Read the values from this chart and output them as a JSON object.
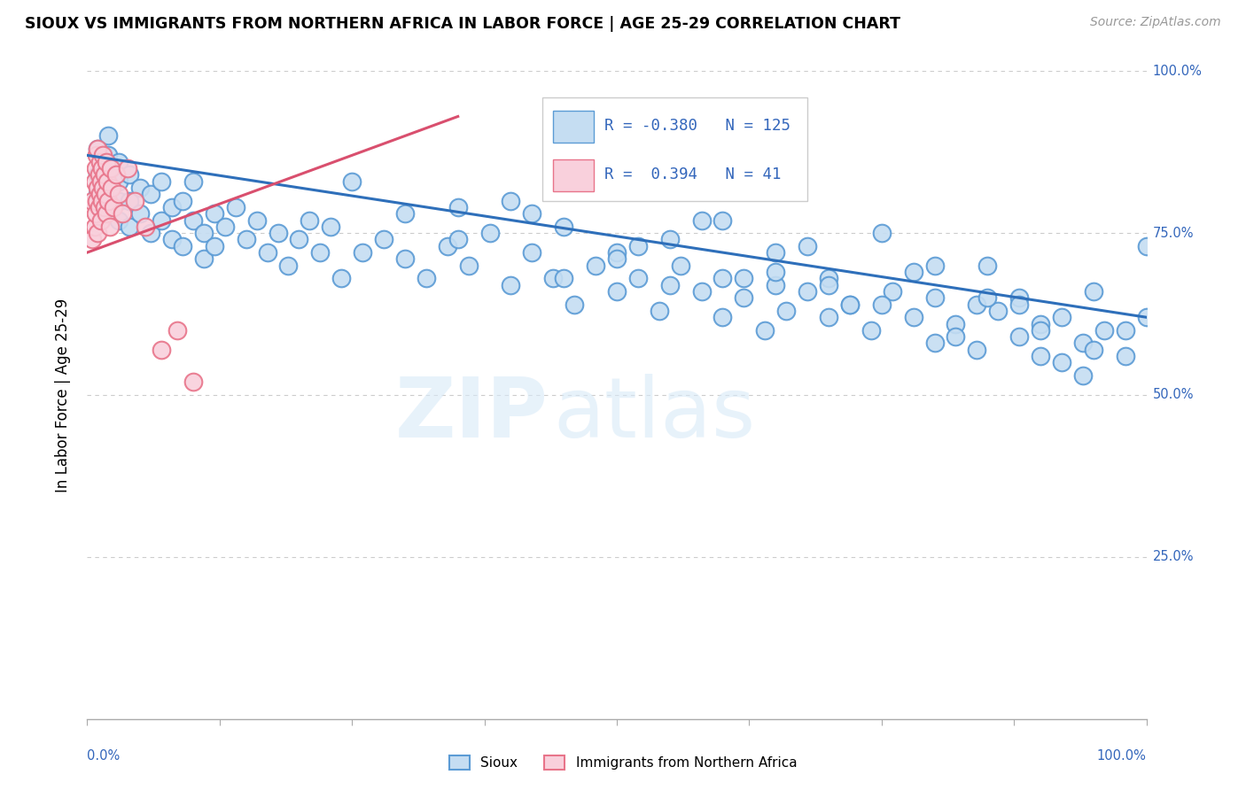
{
  "title": "SIOUX VS IMMIGRANTS FROM NORTHERN AFRICA IN LABOR FORCE | AGE 25-29 CORRELATION CHART",
  "source": "Source: ZipAtlas.com",
  "ylabel": "In Labor Force | Age 25-29",
  "sioux_R": -0.38,
  "sioux_N": 125,
  "immigrants_R": 0.394,
  "immigrants_N": 41,
  "sioux_color": "#c5ddf2",
  "sioux_edge": "#5b9bd5",
  "immigrants_color": "#f9d0dc",
  "immigrants_edge": "#e8748a",
  "sioux_line_color": "#2e6fba",
  "immigrants_line_color": "#d94f6e",
  "watermark_zip": "ZIP",
  "watermark_atlas": "atlas",
  "background": "#ffffff",
  "xlim": [
    0.0,
    1.0
  ],
  "ylim": [
    0.0,
    1.0
  ],
  "sioux_line_x0": 0.0,
  "sioux_line_x1": 1.0,
  "sioux_line_y0": 0.87,
  "sioux_line_y1": 0.62,
  "immigrants_line_x0": 0.0,
  "immigrants_line_x1": 0.35,
  "immigrants_line_y0": 0.72,
  "immigrants_line_y1": 0.93,
  "sioux_points_x": [
    0.01,
    0.01,
    0.01,
    0.02,
    0.02,
    0.02,
    0.02,
    0.02,
    0.03,
    0.03,
    0.03,
    0.03,
    0.04,
    0.04,
    0.04,
    0.05,
    0.05,
    0.06,
    0.06,
    0.07,
    0.07,
    0.08,
    0.08,
    0.09,
    0.09,
    0.1,
    0.1,
    0.11,
    0.11,
    0.12,
    0.12,
    0.13,
    0.14,
    0.15,
    0.16,
    0.17,
    0.18,
    0.19,
    0.2,
    0.21,
    0.22,
    0.23,
    0.24,
    0.26,
    0.28,
    0.3,
    0.32,
    0.34,
    0.36,
    0.38,
    0.4,
    0.42,
    0.44,
    0.46,
    0.48,
    0.5,
    0.5,
    0.52,
    0.54,
    0.56,
    0.58,
    0.6,
    0.6,
    0.62,
    0.64,
    0.65,
    0.66,
    0.68,
    0.7,
    0.7,
    0.72,
    0.74,
    0.76,
    0.78,
    0.8,
    0.8,
    0.82,
    0.84,
    0.84,
    0.86,
    0.88,
    0.88,
    0.9,
    0.9,
    0.92,
    0.94,
    0.94,
    0.96,
    0.98,
    1.0,
    0.3,
    0.35,
    0.4,
    0.45,
    0.5,
    0.55,
    0.6,
    0.65,
    0.7,
    0.75,
    0.8,
    0.85,
    0.9,
    0.95,
    1.0,
    0.25,
    0.35,
    0.45,
    0.55,
    0.65,
    0.75,
    0.85,
    0.95,
    0.48,
    0.58,
    0.68,
    0.78,
    0.88,
    0.98,
    0.42,
    0.52,
    0.62,
    0.72,
    0.82,
    0.92
  ],
  "sioux_points_y": [
    0.84,
    0.88,
    0.81,
    0.87,
    0.83,
    0.79,
    0.85,
    0.9,
    0.83,
    0.86,
    0.8,
    0.77,
    0.84,
    0.8,
    0.76,
    0.82,
    0.78,
    0.81,
    0.75,
    0.83,
    0.77,
    0.79,
    0.74,
    0.8,
    0.73,
    0.77,
    0.83,
    0.75,
    0.71,
    0.78,
    0.73,
    0.76,
    0.79,
    0.74,
    0.77,
    0.72,
    0.75,
    0.7,
    0.74,
    0.77,
    0.72,
    0.76,
    0.68,
    0.72,
    0.74,
    0.71,
    0.68,
    0.73,
    0.7,
    0.75,
    0.67,
    0.72,
    0.68,
    0.64,
    0.7,
    0.66,
    0.72,
    0.68,
    0.63,
    0.7,
    0.66,
    0.62,
    0.68,
    0.65,
    0.6,
    0.67,
    0.63,
    0.66,
    0.62,
    0.68,
    0.64,
    0.6,
    0.66,
    0.62,
    0.58,
    0.65,
    0.61,
    0.64,
    0.57,
    0.63,
    0.59,
    0.65,
    0.61,
    0.56,
    0.62,
    0.58,
    0.53,
    0.6,
    0.56,
    0.62,
    0.78,
    0.74,
    0.8,
    0.76,
    0.71,
    0.67,
    0.77,
    0.72,
    0.67,
    0.64,
    0.7,
    0.65,
    0.6,
    0.57,
    0.73,
    0.83,
    0.79,
    0.68,
    0.74,
    0.69,
    0.75,
    0.7,
    0.66,
    0.82,
    0.77,
    0.73,
    0.69,
    0.64,
    0.6,
    0.78,
    0.73,
    0.68,
    0.64,
    0.59,
    0.55
  ],
  "immigrants_points_x": [
    0.005,
    0.005,
    0.007,
    0.007,
    0.008,
    0.008,
    0.009,
    0.009,
    0.01,
    0.01,
    0.01,
    0.011,
    0.011,
    0.012,
    0.012,
    0.013,
    0.013,
    0.014,
    0.014,
    0.015,
    0.015,
    0.016,
    0.016,
    0.017,
    0.018,
    0.018,
    0.019,
    0.02,
    0.021,
    0.022,
    0.023,
    0.025,
    0.027,
    0.03,
    0.033,
    0.038,
    0.045,
    0.055,
    0.07,
    0.085,
    0.1
  ],
  "immigrants_points_y": [
    0.74,
    0.8,
    0.76,
    0.83,
    0.78,
    0.85,
    0.8,
    0.87,
    0.82,
    0.88,
    0.75,
    0.84,
    0.79,
    0.86,
    0.81,
    0.83,
    0.77,
    0.85,
    0.8,
    0.82,
    0.87,
    0.79,
    0.84,
    0.81,
    0.86,
    0.78,
    0.83,
    0.8,
    0.76,
    0.85,
    0.82,
    0.79,
    0.84,
    0.81,
    0.78,
    0.85,
    0.8,
    0.76,
    0.57,
    0.6,
    0.52
  ]
}
